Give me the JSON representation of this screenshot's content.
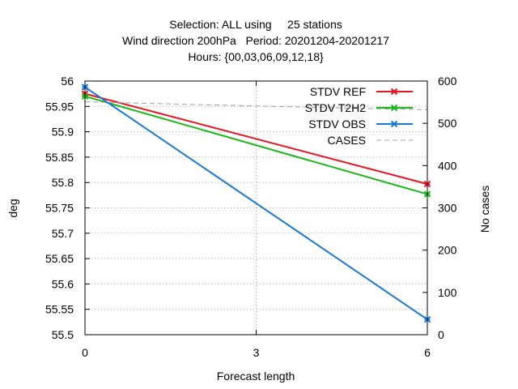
{
  "chart_data": {
    "type": "line",
    "title_lines": [
      "Selection: ALL using     25 stations",
      "Wind direction 200hPa   Period: 20201204-20201217",
      "Hours: {00,03,06,09,12,18}"
    ],
    "xlabel": "Forecast length",
    "ylabel": "deg",
    "y2label": "No cases",
    "x_ticks": [
      0,
      3,
      6
    ],
    "xlim": [
      0,
      6
    ],
    "ylim": [
      55.5,
      56.0
    ],
    "y_ticks": [
      "55.5",
      "55.55",
      "55.6",
      "55.65",
      "55.7",
      "55.75",
      "55.8",
      "55.85",
      "55.9",
      "55.95",
      "56"
    ],
    "y2lim": [
      0,
      600
    ],
    "y2_ticks": [
      "0",
      "100",
      "200",
      "300",
      "400",
      "500",
      "600"
    ],
    "grid": true,
    "legend_position": "top-right",
    "series": [
      {
        "name": "STDV REF",
        "axis": "y",
        "color": "#e8141e",
        "marker": "x",
        "style": "solid",
        "x": [
          0,
          6
        ],
        "values": [
          55.975,
          55.797
        ]
      },
      {
        "name": "STDV T2H2",
        "axis": "y",
        "color": "#18b818",
        "marker": "x",
        "style": "solid",
        "x": [
          0,
          6
        ],
        "values": [
          55.97,
          55.777
        ]
      },
      {
        "name": "STDV OBS",
        "axis": "y",
        "color": "#1a78d8",
        "marker": "x",
        "style": "solid",
        "x": [
          0,
          6
        ],
        "values": [
          55.988,
          55.53
        ]
      },
      {
        "name": "CASES",
        "axis": "y2",
        "color": "#a0a0a0",
        "marker": "none",
        "style": "dashed",
        "x": [
          0,
          3,
          6
        ],
        "values": [
          551,
          541,
          532
        ]
      }
    ]
  }
}
